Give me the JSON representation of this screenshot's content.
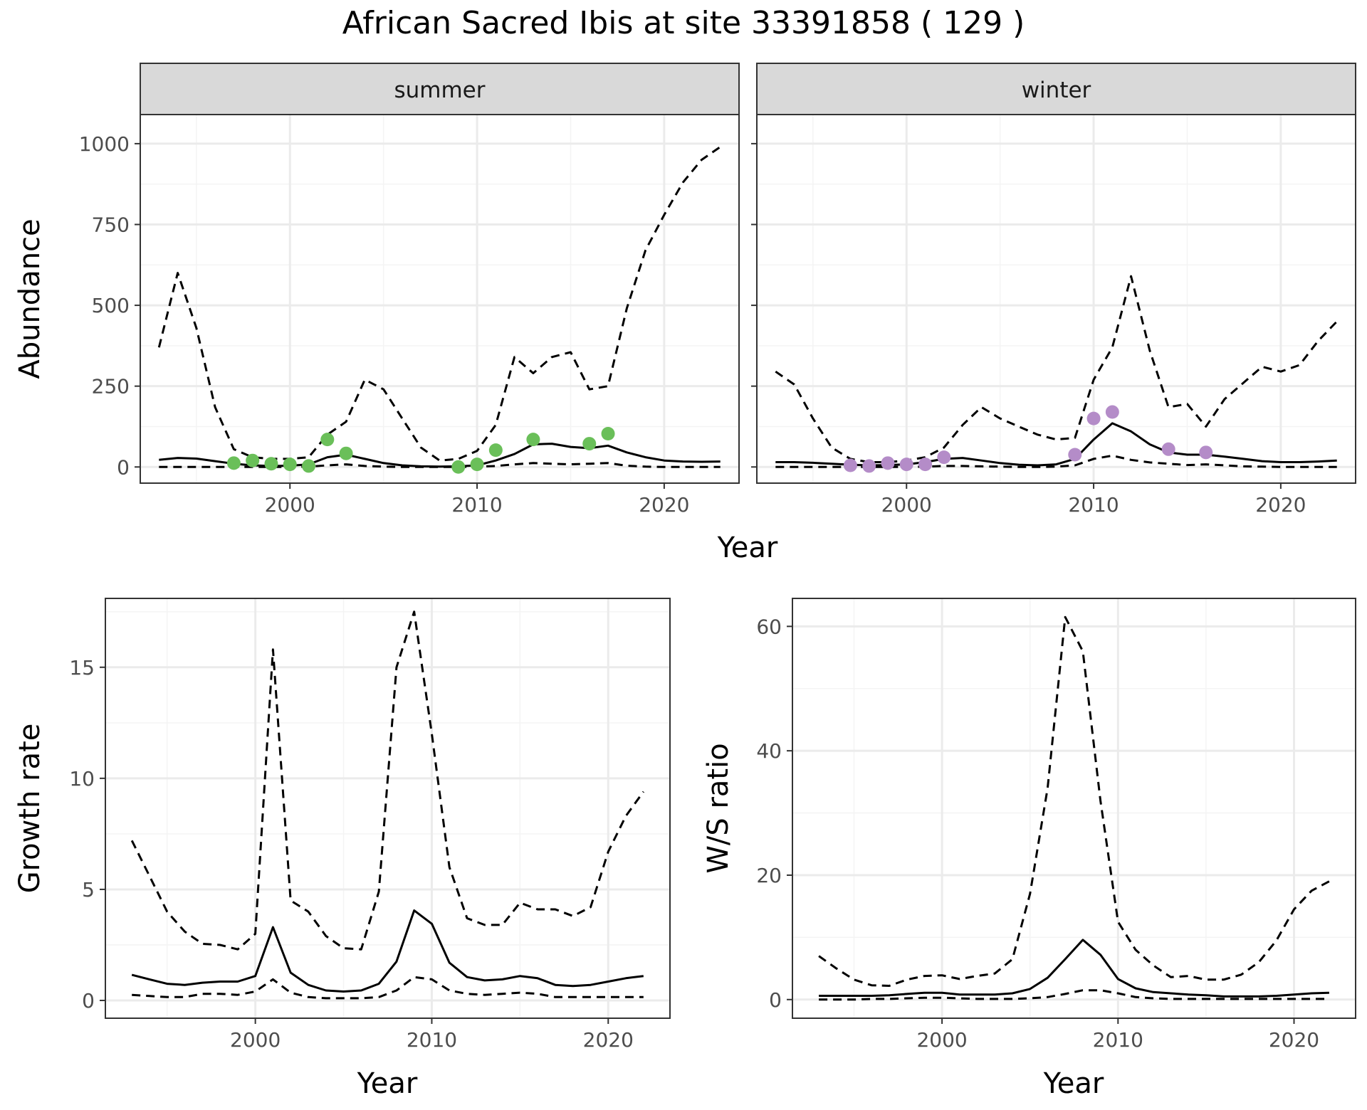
{
  "title": "African Sacred Ibis at site 33391858 ( 129 )",
  "colors": {
    "summer_points": "#6abf59",
    "winter_points": "#b48cc8",
    "line": "#000000",
    "grid_major": "#ebebeb",
    "grid_minor": "#f4f4f4",
    "strip_fill": "#d9d9d9",
    "panel_border": "#333333"
  },
  "chart_data": [
    {
      "type": "line",
      "panel": "summer",
      "xlabel": "Year",
      "ylabel": "Abundance",
      "xlim": [
        1992,
        2024
      ],
      "ylim": [
        -50,
        1090
      ],
      "xticks": [
        2000,
        2010,
        2020
      ],
      "yticks": [
        0,
        250,
        500,
        750,
        1000
      ],
      "grid": true,
      "series": [
        {
          "style": "solid",
          "x": [
            1993,
            1994,
            1995,
            1996,
            1997,
            1998,
            1999,
            2000,
            2001,
            2002,
            2003,
            2004,
            2005,
            2006,
            2007,
            2008,
            2009,
            2010,
            2011,
            2012,
            2013,
            2014,
            2015,
            2016,
            2017,
            2018,
            2019,
            2020,
            2021,
            2022,
            2023
          ],
          "values": [
            22,
            28,
            26,
            18,
            10,
            5,
            3,
            4,
            8,
            30,
            38,
            25,
            12,
            5,
            2,
            1,
            2,
            5,
            20,
            40,
            70,
            72,
            62,
            58,
            66,
            45,
            30,
            20,
            17,
            16,
            17
          ]
        },
        {
          "style": "dashed",
          "x": [
            1993,
            1994,
            1995,
            1996,
            1997,
            1998,
            1999,
            2000,
            2001,
            2002,
            2003,
            2004,
            2005,
            2006,
            2007,
            2008,
            2009,
            2010,
            2011,
            2012,
            2013,
            2014,
            2015,
            2016,
            2017,
            2018,
            2019,
            2020,
            2021,
            2022,
            2023
          ],
          "values": [
            370,
            600,
            430,
            185,
            55,
            30,
            25,
            25,
            30,
            100,
            140,
            270,
            240,
            150,
            60,
            20,
            25,
            50,
            130,
            340,
            290,
            340,
            355,
            240,
            250,
            490,
            670,
            780,
            880,
            950,
            990
          ]
        },
        {
          "style": "dashed",
          "x": [
            1993,
            1994,
            1995,
            1996,
            1997,
            1998,
            1999,
            2000,
            2001,
            2002,
            2003,
            2004,
            2005,
            2006,
            2007,
            2008,
            2009,
            2010,
            2011,
            2012,
            2013,
            2014,
            2015,
            2016,
            2017,
            2018,
            2019,
            2020,
            2021,
            2022,
            2023
          ],
          "values": [
            0,
            0,
            0,
            0,
            0,
            0,
            0,
            0,
            1,
            5,
            8,
            3,
            1,
            0,
            0,
            0,
            0,
            1,
            3,
            8,
            12,
            10,
            8,
            10,
            12,
            4,
            1,
            0,
            0,
            0,
            0
          ]
        },
        {
          "style": "points",
          "x": [
            1997,
            1998,
            1999,
            2000,
            2001,
            2002,
            2003,
            2009,
            2010,
            2011,
            2013,
            2016,
            2017
          ],
          "values": [
            12,
            20,
            10,
            8,
            3,
            85,
            42,
            0,
            8,
            52,
            85,
            72,
            103
          ]
        }
      ]
    },
    {
      "type": "line",
      "panel": "winter",
      "xlabel": "Year",
      "ylabel": "Abundance",
      "xlim": [
        1992,
        2024
      ],
      "ylim": [
        -50,
        1090
      ],
      "xticks": [
        2000,
        2010,
        2020
      ],
      "yticks": [
        0,
        250,
        500,
        750,
        1000
      ],
      "grid": true,
      "series": [
        {
          "style": "solid",
          "x": [
            1993,
            1994,
            1995,
            1996,
            1997,
            1998,
            1999,
            2000,
            2001,
            2002,
            2003,
            2004,
            2005,
            2006,
            2007,
            2008,
            2009,
            2010,
            2011,
            2012,
            2013,
            2014,
            2015,
            2016,
            2017,
            2018,
            2019,
            2020,
            2021,
            2022,
            2023
          ],
          "values": [
            15,
            15,
            13,
            10,
            7,
            5,
            6,
            8,
            15,
            25,
            28,
            20,
            12,
            7,
            5,
            8,
            25,
            85,
            135,
            110,
            70,
            45,
            38,
            38,
            32,
            25,
            18,
            15,
            15,
            17,
            20
          ]
        },
        {
          "style": "dashed",
          "x": [
            1993,
            1994,
            1995,
            1996,
            1997,
            1998,
            1999,
            2000,
            2001,
            2002,
            2003,
            2004,
            2005,
            2006,
            2007,
            2008,
            2009,
            2010,
            2011,
            2012,
            2013,
            2014,
            2015,
            2016,
            2017,
            2018,
            2019,
            2020,
            2021,
            2022,
            2023
          ],
          "values": [
            295,
            255,
            150,
            60,
            25,
            15,
            15,
            20,
            30,
            60,
            130,
            185,
            150,
            125,
            100,
            85,
            90,
            270,
            370,
            590,
            360,
            185,
            195,
            125,
            210,
            260,
            310,
            295,
            315,
            390,
            450
          ]
        },
        {
          "style": "dashed",
          "x": [
            1993,
            1994,
            1995,
            1996,
            1997,
            1998,
            1999,
            2000,
            2001,
            2002,
            2003,
            2004,
            2005,
            2006,
            2007,
            2008,
            2009,
            2010,
            2011,
            2012,
            2013,
            2014,
            2015,
            2016,
            2017,
            2018,
            2019,
            2020,
            2021,
            2022,
            2023
          ],
          "values": [
            0,
            0,
            0,
            0,
            0,
            0,
            0,
            0,
            1,
            3,
            3,
            2,
            1,
            0,
            0,
            1,
            5,
            25,
            35,
            22,
            14,
            10,
            6,
            8,
            5,
            2,
            1,
            0,
            0,
            0,
            0
          ]
        },
        {
          "style": "points",
          "x": [
            1997,
            1998,
            1999,
            2000,
            2001,
            2002,
            2009,
            2010,
            2011,
            2014,
            2016
          ],
          "values": [
            5,
            3,
            12,
            8,
            8,
            30,
            38,
            150,
            170,
            55,
            45
          ]
        }
      ]
    },
    {
      "type": "line",
      "panel": "growth",
      "xlabel": "Year",
      "ylabel": "Growth rate",
      "xlim": [
        1991.5,
        2023.5
      ],
      "ylim": [
        -0.8,
        18.1
      ],
      "xticks": [
        2000,
        2010,
        2020
      ],
      "yticks": [
        0,
        5,
        10,
        15
      ],
      "grid": true,
      "series": [
        {
          "style": "solid",
          "x": [
            1993,
            1994,
            1995,
            1996,
            1997,
            1998,
            1999,
            2000,
            2001,
            2002,
            2003,
            2004,
            2005,
            2006,
            2007,
            2008,
            2009,
            2010,
            2011,
            2012,
            2013,
            2014,
            2015,
            2016,
            2017,
            2018,
            2019,
            2020,
            2021,
            2022
          ],
          "values": [
            1.15,
            0.95,
            0.75,
            0.7,
            0.8,
            0.85,
            0.85,
            1.1,
            3.3,
            1.25,
            0.7,
            0.45,
            0.4,
            0.45,
            0.75,
            1.75,
            4.05,
            3.45,
            1.7,
            1.05,
            0.9,
            0.95,
            1.1,
            1.0,
            0.7,
            0.65,
            0.7,
            0.85,
            1.0,
            1.1
          ]
        },
        {
          "style": "dashed",
          "x": [
            1993,
            1994,
            1995,
            1996,
            1997,
            1998,
            1999,
            2000,
            2001,
            2002,
            2003,
            2004,
            2005,
            2006,
            2007,
            2008,
            2009,
            2010,
            2011,
            2012,
            2013,
            2014,
            2015,
            2016,
            2017,
            2018,
            2019,
            2020,
            2021,
            2022
          ],
          "values": [
            7.2,
            5.6,
            4.0,
            3.1,
            2.55,
            2.5,
            2.3,
            3.0,
            15.8,
            4.5,
            4.0,
            2.9,
            2.35,
            2.3,
            4.9,
            15.0,
            17.5,
            12.0,
            6.0,
            3.7,
            3.4,
            3.4,
            4.4,
            4.1,
            4.1,
            3.8,
            4.2,
            6.7,
            8.3,
            9.4
          ]
        },
        {
          "style": "dashed",
          "x": [
            1993,
            1994,
            1995,
            1996,
            1997,
            1998,
            1999,
            2000,
            2001,
            2002,
            2003,
            2004,
            2005,
            2006,
            2007,
            2008,
            2009,
            2010,
            2011,
            2012,
            2013,
            2014,
            2015,
            2016,
            2017,
            2018,
            2019,
            2020,
            2021,
            2022
          ],
          "values": [
            0.25,
            0.2,
            0.15,
            0.15,
            0.3,
            0.3,
            0.25,
            0.4,
            0.95,
            0.35,
            0.15,
            0.1,
            0.1,
            0.1,
            0.15,
            0.45,
            1.05,
            0.95,
            0.45,
            0.3,
            0.25,
            0.3,
            0.35,
            0.3,
            0.15,
            0.15,
            0.15,
            0.15,
            0.15,
            0.15
          ]
        }
      ]
    },
    {
      "type": "line",
      "panel": "ratio",
      "xlabel": "Year",
      "ylabel": "W/S ratio",
      "xlim": [
        1991.5,
        2023.5
      ],
      "ylim": [
        -3,
        64.5
      ],
      "xticks": [
        2000,
        2010,
        2020
      ],
      "yticks": [
        0,
        20,
        40,
        60
      ],
      "grid": true,
      "series": [
        {
          "style": "solid",
          "x": [
            1993,
            1994,
            1995,
            1996,
            1997,
            1998,
            1999,
            2000,
            2001,
            2002,
            2003,
            2004,
            2005,
            2006,
            2007,
            2008,
            2009,
            2010,
            2011,
            2012,
            2013,
            2014,
            2015,
            2016,
            2017,
            2018,
            2019,
            2020,
            2021,
            2022
          ],
          "values": [
            0.6,
            0.6,
            0.6,
            0.6,
            0.7,
            0.9,
            1.1,
            1.1,
            0.8,
            0.8,
            0.8,
            1.0,
            1.7,
            3.5,
            6.5,
            9.6,
            7.2,
            3.3,
            1.8,
            1.2,
            1.0,
            0.8,
            0.7,
            0.5,
            0.5,
            0.5,
            0.6,
            0.8,
            1.0,
            1.1
          ]
        },
        {
          "style": "dashed",
          "x": [
            1993,
            1994,
            1995,
            1996,
            1997,
            1998,
            1999,
            2000,
            2001,
            2002,
            2003,
            2004,
            2005,
            2006,
            2007,
            2008,
            2009,
            2010,
            2011,
            2012,
            2013,
            2014,
            2015,
            2016,
            2017,
            2018,
            2019,
            2020,
            2021,
            2022
          ],
          "values": [
            7.0,
            5.0,
            3.2,
            2.3,
            2.2,
            3.2,
            3.8,
            3.9,
            3.3,
            3.8,
            4.2,
            6.5,
            17.0,
            34.0,
            61.5,
            56.0,
            32.0,
            12.5,
            8.0,
            5.5,
            3.6,
            3.8,
            3.2,
            3.2,
            4.0,
            6.0,
            9.5,
            14.5,
            17.5,
            19.0
          ]
        },
        {
          "style": "dashed",
          "x": [
            1993,
            1994,
            1995,
            1996,
            1997,
            1998,
            1999,
            2000,
            2001,
            2002,
            2003,
            2004,
            2005,
            2006,
            2007,
            2008,
            2009,
            2010,
            2011,
            2012,
            2013,
            2014,
            2015,
            2016,
            2017,
            2018,
            2019,
            2020,
            2021,
            2022
          ],
          "values": [
            0,
            0,
            0,
            0.1,
            0.1,
            0.2,
            0.3,
            0.3,
            0.2,
            0.1,
            0.1,
            0.1,
            0.2,
            0.4,
            0.9,
            1.5,
            1.5,
            1.0,
            0.4,
            0.2,
            0.1,
            0.1,
            0.1,
            0.1,
            0.1,
            0.1,
            0.1,
            0.1,
            0.1,
            0.1
          ]
        }
      ]
    }
  ],
  "strips": {
    "summer": "summer",
    "winter": "winter"
  },
  "labels": {
    "top_xlabel": "Year",
    "top_ylabel": "Abundance"
  }
}
